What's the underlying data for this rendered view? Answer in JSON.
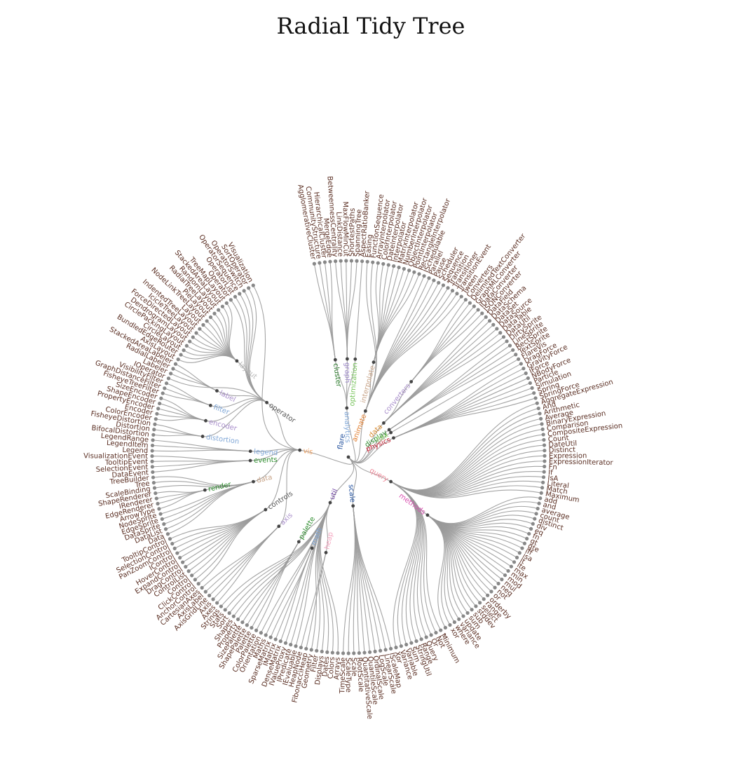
{
  "title": "Radial Tidy Tree",
  "colors": {
    "link": "#9a9a9a",
    "leaf_text": "#5a2e22",
    "leaf_dot": "#888888",
    "inner_dot": "#444444",
    "group": {
      "flare": "#1f4e9c",
      "analytics": "#7fa6d6",
      "cluster": "#2a7a2a",
      "graph": "#9a86c8",
      "optimization": "#76c35a",
      "animate": "#e07b2c",
      "interpolate": "#c8a488",
      "data": "#d7892e",
      "converters": "#a98fcb",
      "display": "#2a8a2a",
      "flex": "#8fd46a",
      "physics": "#c0182a",
      "query": "#f08a9a",
      "methods": "#d94fb0",
      "scale": "#1f4e9c",
      "util": "#6a3da0",
      "palette": "#2a8a2a",
      "math": "#7fa6d6",
      "heap": "#f4a6c0",
      "vis": "#f0a060",
      "axis": "#a98fcb",
      "controls": "#555555",
      "events": "#2a8a2a",
      "legend": "#7fa6d6",
      "render": "#2a8a2a",
      "operator": "#555555",
      "distortion": "#7fa6d6",
      "encoder": "#a98fcb",
      "filter": "#7fa6d6",
      "label": "#a98fcb",
      "layout": "#b8b8b8",
      "vis_data": "#c8a488"
    }
  },
  "tree": {
    "name": "flare",
    "key": "flare",
    "children": [
      {
        "name": "analytics",
        "key": "analytics",
        "children": [
          {
            "name": "cluster",
            "key": "cluster",
            "children": [
              "AgglomerativeCluster",
              "CommunityStructure",
              "HierarchicalCluster",
              "MergeEdge"
            ]
          },
          {
            "name": "graph",
            "key": "graph",
            "children": [
              "BetweennessCentrality",
              "LinkDistance",
              "MaxFlowMinCut",
              "ShortestPaths",
              "SpanningTree"
            ]
          },
          {
            "name": "optimization",
            "key": "optimization",
            "children": [
              "AspectRatioBanker"
            ]
          }
        ]
      },
      {
        "name": "animate",
        "key": "animate",
        "children": [
          "Easing",
          "FunctionSequence",
          {
            "name": "interpolate",
            "key": "interpolate",
            "children": [
              "ArrayInterpolator",
              "ColorInterpolator",
              "DateInterpolator",
              "Interpolator",
              "MatrixInterpolator",
              "NumberInterpolator",
              "ObjectInterpolator",
              "PointInterpolator",
              "RectangleInterpolator"
            ]
          },
          "ISchedulable",
          "Parallel",
          "Pause",
          "Scheduler",
          "Sequence",
          "Transition",
          "Transitioner",
          "TransitionEvent",
          "Tween"
        ]
      },
      {
        "name": "data",
        "key": "data",
        "children": [
          {
            "name": "converters",
            "key": "converters",
            "children": [
              "Converters",
              "DelimitedTextConverter",
              "GraphMLConverter",
              "IDataConverter",
              "JSONConverter"
            ]
          },
          "DataField",
          "DataSchema",
          "DataSet",
          "DataSource",
          "DataTable",
          "DataUtil"
        ]
      },
      {
        "name": "display",
        "key": "display",
        "children": [
          "DirtySprite",
          "LineSprite",
          "RectSprite",
          "TextSprite"
        ]
      },
      {
        "name": "flex",
        "key": "flex",
        "children": [
          "FlareVis"
        ]
      },
      {
        "name": "physics",
        "key": "physics",
        "children": [
          "DragForce",
          "GravityForce",
          "IForce",
          "NBodyForce",
          "Particle",
          "Simulation",
          "Spring",
          "SpringForce"
        ]
      },
      {
        "name": "query",
        "key": "query",
        "children": [
          "AggregateExpression",
          "And",
          "Arithmetic",
          "Average",
          "BinaryExpression",
          "Comparison",
          "CompositeExpression",
          "Count",
          "DateUtil",
          "Distinct",
          "Expression",
          "ExpressionIterator",
          "Fn",
          "If",
          "IsA",
          "Literal",
          "Match",
          "Maximum",
          {
            "name": "methods",
            "key": "methods",
            "children": [
              "add",
              "and",
              "average",
              "count",
              "distinct",
              "div",
              "eq",
              "fn",
              "gt",
              "gte",
              "iff",
              "isa",
              "lt",
              "lte",
              "max",
              "min",
              "mod",
              "mul",
              "neq",
              "not",
              "or",
              "orderby",
              "range",
              "select",
              "stddev",
              "sub",
              "sum",
              "update",
              "variance",
              "where",
              "xor",
              "_"
            ]
          },
          "Minimum",
          "Not",
          "Or",
          "Query",
          "Range",
          "StringUtil",
          "Sum",
          "Variable",
          "Variance",
          "Xor"
        ]
      },
      {
        "name": "scale",
        "key": "scale",
        "children": [
          "IScaleMap",
          "LinearScale",
          "LogScale",
          "OrdinalScale",
          "QuantileScale",
          "QuantitativeScale",
          "RootScale",
          "Scale",
          "ScaleType",
          "TimeScale"
        ]
      },
      {
        "name": "util",
        "key": "util",
        "children": [
          "Arrays",
          "Colors",
          "Dates",
          "Displays",
          "Filter",
          "Geometry",
          {
            "name": "heap",
            "key": "heap",
            "children": [
              "FibonacciHeap",
              "HeapNode"
            ]
          },
          "IEvaluable",
          "IPredicate",
          "IValueProxy",
          {
            "name": "math",
            "key": "math",
            "children": [
              "DenseMatrix",
              "IMatrix",
              "SparseMatrix"
            ]
          },
          "Maths",
          "Orientation",
          {
            "name": "palette",
            "key": "palette",
            "children": [
              "ColorPalette",
              "Palette",
              "ShapePalette",
              "SizePalette"
            ]
          },
          "Property",
          "Shapes",
          "Sort",
          "Stats",
          "Strings"
        ]
      },
      {
        "name": "vis",
        "key": "vis",
        "children": [
          {
            "name": "axis",
            "key": "axis",
            "children": [
              "Axes",
              "Axis",
              "AxisGridLine",
              "AxisLabel",
              "CartesianAxes"
            ]
          },
          {
            "name": "controls",
            "key": "controls",
            "children": [
              "AnchorControl",
              "ClickControl",
              "Control",
              "ControlList",
              "DragControl",
              "ExpandControl",
              "HoverControl",
              "IControl",
              "PanZoomControl",
              "SelectionControl",
              "TooltipControl"
            ]
          },
          {
            "name": "data",
            "key": "vis_data",
            "children": [
              "Data",
              "DataList",
              "DataSprite",
              "EdgeSprite",
              "NodeSprite",
              {
                "name": "render",
                "key": "render",
                "children": [
                  "ArrowType",
                  "EdgeRenderer",
                  "IRenderer",
                  "ShapeRenderer"
                ]
              },
              "ScaleBinding",
              "Tree",
              "TreeBuilder"
            ]
          },
          {
            "name": "events",
            "key": "events",
            "children": [
              "DataEvent",
              "SelectionEvent",
              "TooltipEvent",
              "VisualizationEvent"
            ]
          },
          {
            "name": "legend",
            "key": "legend",
            "children": [
              "Legend",
              "LegendItem",
              "LegendRange"
            ]
          },
          {
            "name": "operator",
            "key": "operator",
            "children": [
              {
                "name": "distortion",
                "key": "distortion",
                "children": [
                  "BifocalDistortion",
                  "Distortion",
                  "FisheyeDistortion"
                ]
              },
              {
                "name": "encoder",
                "key": "encoder",
                "children": [
                  "ColorEncoder",
                  "Encoder",
                  "PropertyEncoder",
                  "ShapeEncoder",
                  "SizeEncoder"
                ]
              },
              {
                "name": "filter",
                "key": "filter",
                "children": [
                  "FisheyeTreeFilter",
                  "GraphDistanceFilter",
                  "VisibilityFilter"
                ]
              },
              "IOperator",
              {
                "name": "label",
                "key": "label",
                "children": [
                  "Labeler",
                  "RadialLabeler",
                  "StackedAreaLabeler"
                ]
              },
              {
                "name": "layout",
                "key": "layout",
                "children": [
                  "AxisLayout",
                  "BundledEdgeRouter",
                  "CircleLayout",
                  "CirclePackingLayout",
                  "DendrogramLayout",
                  "ForceDirectedLayout",
                  "IcicleTreeLayout",
                  "IndentedTreeLayout",
                  "Layout",
                  "NodeLinkTreeLayout",
                  "PieLayout",
                  "RadialTreeLayout",
                  "RandomLayout",
                  "StackedAreaLayout",
                  "TreeMapLayout"
                ]
              },
              "Operator",
              "OperatorList",
              "OperatorSequence",
              "OperatorSwitch",
              "SortOperator"
            ]
          },
          "Visualization"
        ]
      }
    ]
  }
}
